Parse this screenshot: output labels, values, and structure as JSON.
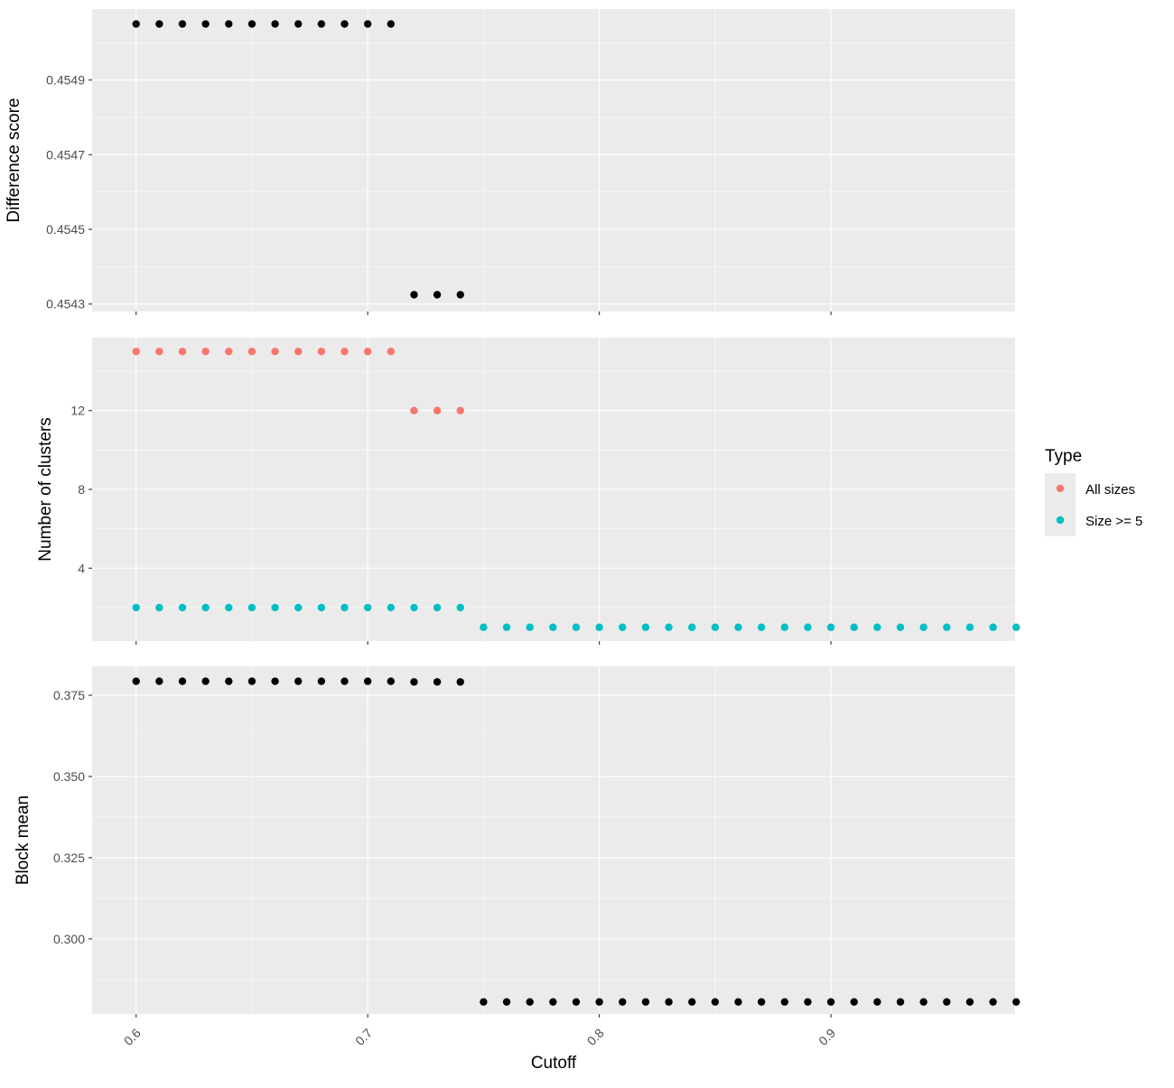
{
  "chart_data": {
    "type": "scatter",
    "xlabel": "Cutoff",
    "xlim": [
      0.581,
      0.9795
    ],
    "x_ticks": [
      0.6,
      0.7,
      0.8,
      0.9
    ],
    "x_tick_labels": [
      "0.6",
      "0.7",
      "0.8",
      "0.9"
    ],
    "grid": true,
    "legend": {
      "title": "Type",
      "placement": "right",
      "entries": [
        {
          "label": "All sizes",
          "color": "#F8766D"
        },
        {
          "label": "Size >= 5",
          "color": "#00BFC4"
        }
      ]
    },
    "panels": [
      {
        "ylabel": "Difference score",
        "ylim": [
          0.45428,
          0.45509
        ],
        "y_ticks": [
          0.4543,
          0.4545,
          0.4547,
          0.4549
        ],
        "y_tick_labels": [
          "0.4543",
          "0.4545",
          "0.4547",
          "0.4549"
        ],
        "series": [
          {
            "color": "#000000",
            "x": [
              0.6,
              0.61,
              0.62,
              0.63,
              0.64,
              0.65,
              0.66,
              0.67,
              0.68,
              0.69,
              0.7,
              0.71,
              0.72,
              0.73,
              0.74
            ],
            "y": [
              0.45505,
              0.45505,
              0.45505,
              0.45505,
              0.45505,
              0.45505,
              0.45505,
              0.45505,
              0.45505,
              0.45505,
              0.45505,
              0.45505,
              0.454325,
              0.454325,
              0.454325
            ]
          }
        ]
      },
      {
        "ylabel": "Number of clusters",
        "ylim": [
          0.3,
          15.7
        ],
        "y_ticks": [
          4,
          8,
          12
        ],
        "y_tick_labels": [
          "4",
          "8",
          "12"
        ],
        "series": [
          {
            "name": "All sizes",
            "color": "#F8766D",
            "x": [
              0.6,
              0.61,
              0.62,
              0.63,
              0.64,
              0.65,
              0.66,
              0.67,
              0.68,
              0.69,
              0.7,
              0.71,
              0.72,
              0.73,
              0.74
            ],
            "y": [
              15,
              15,
              15,
              15,
              15,
              15,
              15,
              15,
              15,
              15,
              15,
              15,
              12,
              12,
              12
            ]
          },
          {
            "name": "Size >= 5",
            "color": "#00BFC4",
            "x": [
              0.6,
              0.61,
              0.62,
              0.63,
              0.64,
              0.65,
              0.66,
              0.67,
              0.68,
              0.69,
              0.7,
              0.71,
              0.72,
              0.73,
              0.74,
              0.75,
              0.76,
              0.77,
              0.78,
              0.79,
              0.8,
              0.81,
              0.82,
              0.83,
              0.84,
              0.85,
              0.86,
              0.87,
              0.88,
              0.89,
              0.9,
              0.91,
              0.92,
              0.93,
              0.94,
              0.95,
              0.96,
              0.97,
              0.98
            ],
            "y": [
              2,
              2,
              2,
              2,
              2,
              2,
              2,
              2,
              2,
              2,
              2,
              2,
              2,
              2,
              2,
              1,
              1,
              1,
              1,
              1,
              1,
              1,
              1,
              1,
              1,
              1,
              1,
              1,
              1,
              1,
              1,
              1,
              1,
              1,
              1,
              1,
              1,
              1,
              1
            ]
          }
        ]
      },
      {
        "ylabel": "Block mean",
        "ylim": [
          0.2769,
          0.3839
        ],
        "y_ticks": [
          0.3,
          0.325,
          0.35,
          0.375
        ],
        "y_tick_labels": [
          "0.300",
          "0.325",
          "0.350",
          "0.375"
        ],
        "series": [
          {
            "color": "#000000",
            "x": [
              0.6,
              0.61,
              0.62,
              0.63,
              0.64,
              0.65,
              0.66,
              0.67,
              0.68,
              0.69,
              0.7,
              0.71,
              0.72,
              0.73,
              0.74,
              0.75,
              0.76,
              0.77,
              0.78,
              0.79,
              0.8,
              0.81,
              0.82,
              0.83,
              0.84,
              0.85,
              0.86,
              0.87,
              0.88,
              0.89,
              0.9,
              0.91,
              0.92,
              0.93,
              0.94,
              0.95,
              0.96,
              0.97,
              0.98
            ],
            "y": [
              0.3793,
              0.3793,
              0.3793,
              0.3793,
              0.3793,
              0.3793,
              0.3793,
              0.3793,
              0.3793,
              0.3793,
              0.3793,
              0.3793,
              0.3791,
              0.3791,
              0.3791,
              0.2806,
              0.2806,
              0.2806,
              0.2806,
              0.2806,
              0.2806,
              0.2806,
              0.2806,
              0.2806,
              0.2806,
              0.2806,
              0.2806,
              0.2806,
              0.2806,
              0.2806,
              0.2806,
              0.2806,
              0.2806,
              0.2806,
              0.2806,
              0.2806,
              0.2806,
              0.2806,
              0.2806
            ]
          }
        ]
      }
    ]
  }
}
